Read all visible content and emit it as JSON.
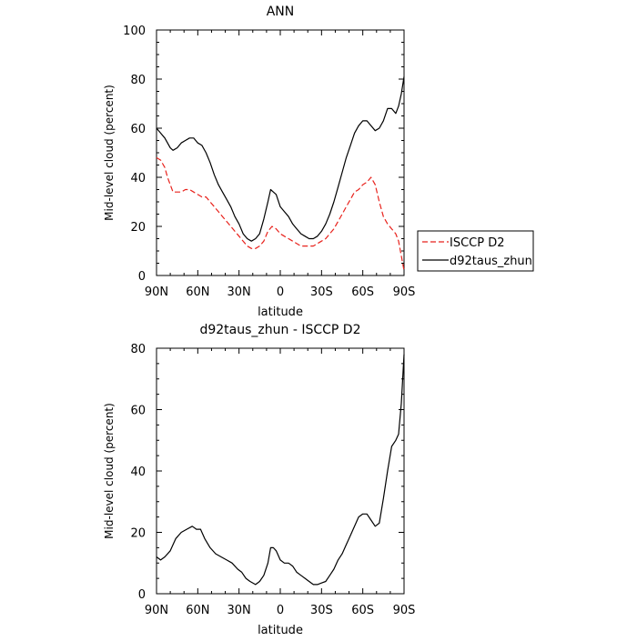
{
  "chart_data": [
    {
      "type": "line",
      "title": "ANN",
      "xlabel": "latitude",
      "ylabel": "Mid-level cloud (percent)",
      "xlim": [
        -90,
        90
      ],
      "ylim": [
        0,
        100
      ],
      "x_ticks": [
        -90,
        -60,
        -30,
        0,
        30,
        60,
        90
      ],
      "x_tick_labels": [
        "90N",
        "60N",
        "30N",
        "0",
        "30S",
        "60S",
        "90S"
      ],
      "y_ticks": [
        0,
        20,
        40,
        60,
        80,
        100
      ],
      "y_tick_labels": [
        "0",
        "20",
        "40",
        "60",
        "80",
        "100"
      ],
      "legend": {
        "placement": "right-outside-bottom"
      },
      "series": [
        {
          "name": "ISCCP D2",
          "color": "#e8221c",
          "dash": "dashed",
          "x": [
            -90,
            -87,
            -84,
            -82,
            -80,
            -78,
            -75,
            -72,
            -69,
            -66,
            -63,
            -60,
            -57,
            -54,
            -51,
            -48,
            -45,
            -42,
            -39,
            -36,
            -33,
            -30,
            -27,
            -24,
            -21,
            -18,
            -15,
            -12,
            -9,
            -6,
            -3,
            0,
            3,
            6,
            9,
            12,
            15,
            18,
            21,
            24,
            27,
            30,
            33,
            36,
            39,
            42,
            45,
            48,
            51,
            54,
            57,
            60,
            63,
            66,
            69,
            72,
            75,
            78,
            81,
            84,
            86,
            88,
            90
          ],
          "y": [
            48,
            47,
            44,
            40,
            37,
            34,
            34,
            34,
            35,
            35,
            34,
            33,
            32,
            32,
            30,
            28,
            26,
            24,
            22,
            20,
            18,
            16,
            14,
            12,
            11,
            11,
            12,
            14,
            18,
            20,
            19,
            17,
            16,
            15,
            14,
            13,
            12,
            12,
            12,
            12,
            13,
            14,
            15,
            17,
            19,
            22,
            25,
            28,
            31,
            34,
            35,
            37,
            38,
            40,
            37,
            30,
            24,
            21,
            19,
            17,
            14,
            8,
            2
          ]
        },
        {
          "name": "d92taus_zhun",
          "color": "#000000",
          "dash": "solid",
          "x": [
            -90,
            -87,
            -84,
            -82,
            -80,
            -78,
            -75,
            -72,
            -69,
            -66,
            -63,
            -60,
            -57,
            -54,
            -51,
            -48,
            -45,
            -42,
            -39,
            -36,
            -33,
            -30,
            -27,
            -24,
            -21,
            -18,
            -15,
            -12,
            -9,
            -7,
            -5,
            -3,
            0,
            3,
            6,
            9,
            12,
            15,
            18,
            21,
            24,
            27,
            30,
            33,
            36,
            39,
            42,
            45,
            48,
            51,
            54,
            57,
            60,
            63,
            66,
            69,
            72,
            75,
            78,
            81,
            84,
            86,
            88,
            90
          ],
          "y": [
            60,
            58,
            56,
            54,
            52,
            51,
            52,
            54,
            55,
            56,
            56,
            54,
            53,
            50,
            46,
            41,
            37,
            34,
            31,
            28,
            24,
            21,
            17,
            15,
            14,
            15,
            17,
            23,
            30,
            35,
            34,
            33,
            28,
            26,
            24,
            21,
            19,
            17,
            16,
            15,
            15,
            16,
            18,
            21,
            25,
            30,
            36,
            42,
            48,
            53,
            58,
            61,
            63,
            63,
            61,
            59,
            60,
            63,
            68,
            68,
            66,
            69,
            74,
            81
          ]
        }
      ]
    },
    {
      "type": "line",
      "title": "d92taus_zhun - ISCCP D2",
      "xlabel": "latitude",
      "ylabel": "Mid-level cloud (percent)",
      "xlim": [
        -90,
        90
      ],
      "ylim": [
        0,
        80
      ],
      "x_ticks": [
        -90,
        -60,
        -30,
        0,
        30,
        60,
        90
      ],
      "x_tick_labels": [
        "90N",
        "60N",
        "30N",
        "0",
        "30S",
        "60S",
        "90S"
      ],
      "y_ticks": [
        0,
        20,
        40,
        60,
        80
      ],
      "y_tick_labels": [
        "0",
        "20",
        "40",
        "60",
        "80"
      ],
      "series": [
        {
          "color": "#000000",
          "dash": "solid",
          "x": [
            -90,
            -87,
            -84,
            -80,
            -76,
            -72,
            -68,
            -64,
            -61,
            -58,
            -55,
            -51,
            -47,
            -43,
            -39,
            -35,
            -31,
            -28,
            -25,
            -22,
            -18,
            -15,
            -12,
            -9,
            -7,
            -5,
            -3,
            0,
            3,
            6,
            9,
            12,
            15,
            18,
            21,
            24,
            27,
            30,
            33,
            36,
            39,
            42,
            45,
            48,
            51,
            54,
            57,
            60,
            63,
            66,
            69,
            72,
            75,
            78,
            81,
            84,
            86,
            88,
            90
          ],
          "y": [
            12,
            11,
            12,
            14,
            18,
            20,
            21,
            22,
            21,
            21,
            18,
            15,
            13,
            12,
            11,
            10,
            8,
            7,
            5,
            4,
            3,
            4,
            6,
            10,
            15,
            15,
            14,
            11,
            10,
            10,
            9,
            7,
            6,
            5,
            4,
            3,
            3,
            3.5,
            4,
            6,
            8,
            11,
            13,
            16,
            19,
            22,
            25,
            26,
            26,
            24,
            22,
            23,
            31,
            40,
            48,
            50,
            52,
            62,
            78
          ]
        }
      ]
    }
  ]
}
